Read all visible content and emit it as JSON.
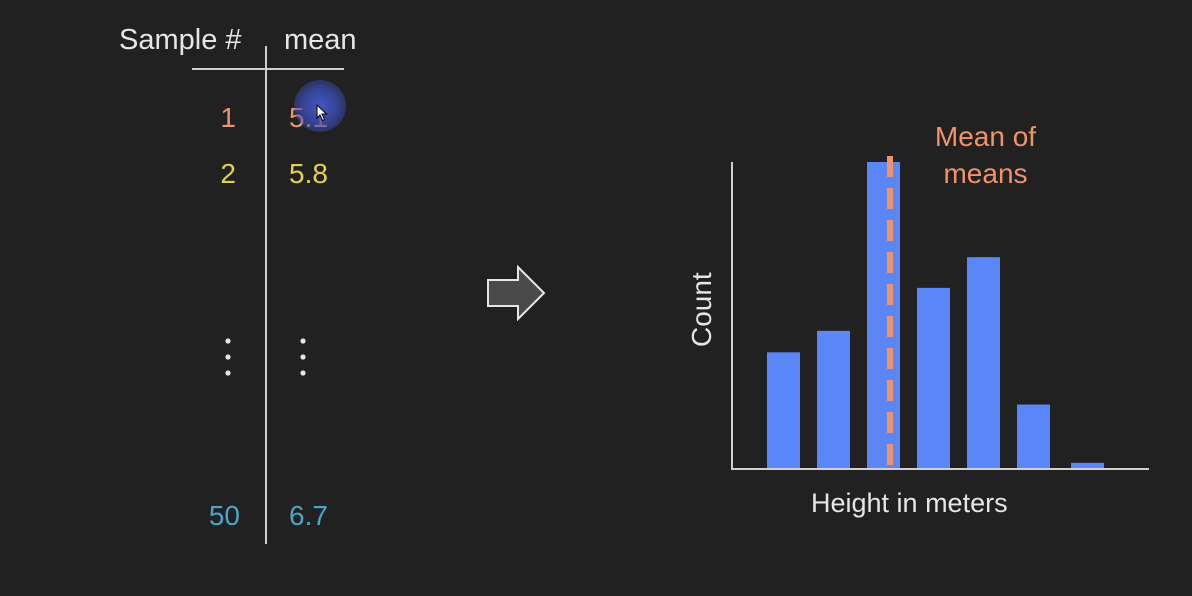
{
  "table": {
    "header_sample": "Sample #",
    "header_mean": "mean",
    "rows": [
      {
        "sample": "1",
        "mean": "5.1",
        "color": "#f0926a"
      },
      {
        "sample": "2",
        "mean": "5.8",
        "color": "#e6d14a"
      },
      {
        "sample": "50",
        "mean": "6.7",
        "color": "#4aa6c8"
      }
    ]
  },
  "arrow_icon": "right-arrow-icon",
  "chart": {
    "ylabel": "Count",
    "xlabel": "Height in meters",
    "annotation_line1": "Mean of",
    "annotation_line2": "means",
    "bar_color": "#5b86f7",
    "mean_line_color": "#f0926a",
    "relative_bar_heights": [
      0.38,
      0.45,
      1.0,
      0.59,
      0.69,
      0.21,
      0.02
    ]
  }
}
